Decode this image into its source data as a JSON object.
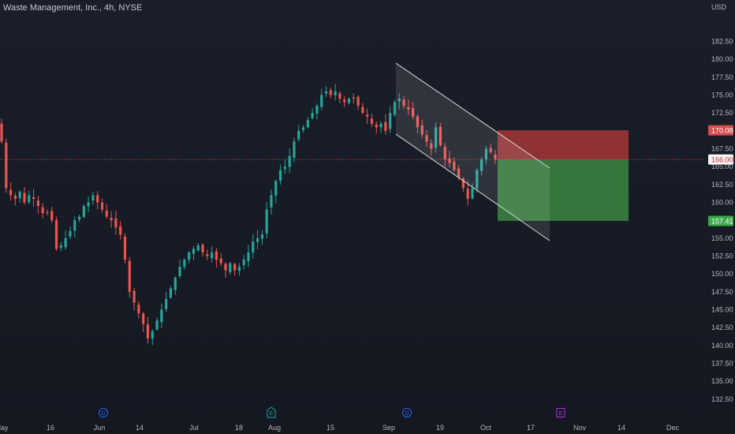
{
  "header": {
    "symbol_title": "Waste Management, Inc., 4h, NYSE",
    "currency": "USD"
  },
  "colors": {
    "background": "#161a23",
    "up": "#26a69a",
    "down": "#ef5350",
    "grid": "#232733",
    "axis_text": "#b2b5be",
    "stop_zone": "#b83a3a",
    "target_zone": "#3f8f43",
    "last_price_line": "#ef5350",
    "channel": "#d9dbe0",
    "dividend_marker": "#2962ff",
    "earnings_marker_past": "#26a69a",
    "earnings_marker_future": "#b630e8"
  },
  "chart_data": {
    "type": "candlestick",
    "title": "Waste Management, Inc., 4h, NYSE",
    "currency": "USD",
    "y_ticks": [
      132.5,
      135.0,
      137.5,
      140.0,
      142.5,
      145.0,
      147.5,
      150.0,
      152.5,
      155.0,
      157.5,
      160.0,
      162.5,
      165.0,
      167.5,
      170.0,
      172.5,
      175.0,
      177.5,
      180.0,
      182.5
    ],
    "ylim": [
      131.6,
      185.2
    ],
    "x_tick_labels": [
      "May",
      "16",
      "Jun",
      "14",
      "Jul",
      "18",
      "Aug",
      "15",
      "Sep",
      "19",
      "Oct",
      "17",
      "Nov",
      "14",
      "Dec"
    ],
    "price_labels": {
      "stop": "170.08",
      "current": "166.00",
      "target": "157.41"
    },
    "price_levels": {
      "stop": 170.08,
      "current": 166.0,
      "target": 157.41
    },
    "closes": [
      168.5,
      162.0,
      161.0,
      160.5,
      161.5,
      160.0,
      161.0,
      160.5,
      159.5,
      158.5,
      158.5,
      157.5,
      153.5,
      154.0,
      155.0,
      156.0,
      157.5,
      158.0,
      159.5,
      160.0,
      161.0,
      160.0,
      159.0,
      158.0,
      157.5,
      156.5,
      155.5,
      152.0,
      147.5,
      146.0,
      144.5,
      143.0,
      141.0,
      142.0,
      143.5,
      145.0,
      146.5,
      148.0,
      149.5,
      151.0,
      152.0,
      153.0,
      153.5,
      154.0,
      153.0,
      152.5,
      153.0,
      152.0,
      151.5,
      150.5,
      151.5,
      150.5,
      151.0,
      152.0,
      153.0,
      154.5,
      155.0,
      155.5,
      159.0,
      161.0,
      163.0,
      164.5,
      165.0,
      166.5,
      168.5,
      170.0,
      170.5,
      171.5,
      172.5,
      173.5,
      175.0,
      175.5,
      175.0,
      175.5,
      174.5,
      174.0,
      174.5,
      174.5,
      173.5,
      172.5,
      172.0,
      171.0,
      170.5,
      171.0,
      170.0,
      172.5,
      174.0,
      174.5,
      173.5,
      173.0,
      172.0,
      170.5,
      169.5,
      168.5,
      167.5,
      170.5,
      168.0,
      166.0,
      165.5,
      164.5,
      163.5,
      162.0,
      160.5,
      162.0,
      164.5,
      166.0,
      167.5,
      167.0,
      166.0
    ],
    "channel": {
      "upper": [
        [
          177.0,
          "Sep 1"
        ],
        [
          164.0,
          "Oct 24"
        ]
      ],
      "lower": [
        [
          168.0,
          "Sep 1"
        ],
        [
          154.0,
          "Oct 24"
        ]
      ]
    },
    "event_markers": [
      {
        "label": "D",
        "kind": "dividend"
      },
      {
        "label": "E",
        "kind": "earnings"
      },
      {
        "label": "D",
        "kind": "dividend"
      },
      {
        "label": "E",
        "kind": "earnings-upcoming"
      }
    ],
    "grid": false,
    "legend": "none"
  }
}
